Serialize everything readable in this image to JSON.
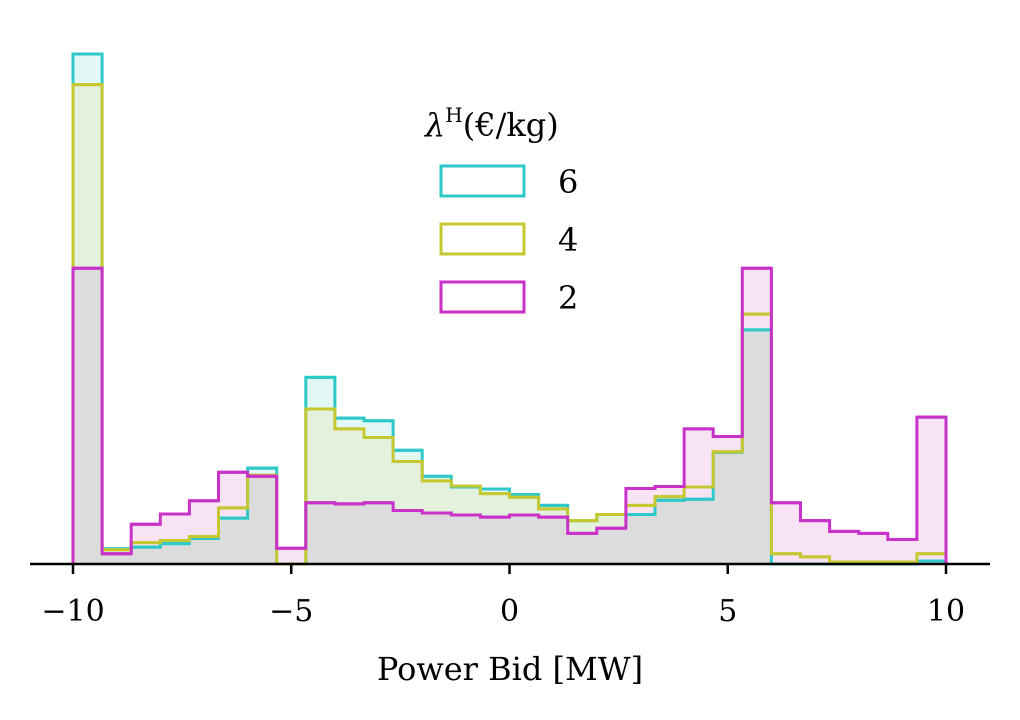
{
  "chart_data": {
    "type": "histogram",
    "xlabel": "Power Bid [MW]",
    "ylabel": "",
    "xlim": [
      -11,
      11
    ],
    "ylim": [
      0,
      1.08
    ],
    "x_ticks": [
      -10,
      -5,
      0,
      5,
      10
    ],
    "x_tick_labels": [
      "−10",
      "−5",
      "0",
      "5",
      "10"
    ],
    "y_axis_visible": false,
    "grid": false,
    "bin_edges": [
      -10,
      -9.3333,
      -8.6667,
      -8,
      -7.3333,
      -6.6667,
      -6,
      -5.3333,
      -4.6667,
      -4,
      -3.3333,
      -2.6667,
      -2,
      -1.3333,
      -0.6667,
      0,
      0.6667,
      1.3333,
      2,
      2.6667,
      3.3333,
      4,
      4.6667,
      5.3333,
      6,
      6.6667,
      7.3333,
      8,
      8.6667,
      9.3333,
      10
    ],
    "legend": {
      "title": "λH(€/kg)",
      "title_symbol": "λ",
      "title_sup": "H",
      "title_rest": "(€/kg)",
      "placement": "upper-center"
    },
    "series": [
      {
        "name": "6",
        "color": "#2ec8c8",
        "fill": "#e2f8f6",
        "values": [
          1.0,
          0.03,
          0.033,
          0.04,
          0.05,
          0.09,
          0.188,
          0.0,
          0.366,
          0.286,
          0.281,
          0.223,
          0.172,
          0.151,
          0.147,
          0.136,
          0.115,
          0.085,
          0.097,
          0.097,
          0.125,
          0.127,
          0.219,
          0.459,
          0.0,
          0.0,
          0.0,
          0.0,
          0.0,
          0.006
        ]
      },
      {
        "name": "4",
        "color": "#c6c832",
        "fill": "#e3f1dd",
        "values": [
          0.94,
          0.028,
          0.042,
          0.046,
          0.054,
          0.11,
          0.174,
          0.0,
          0.304,
          0.265,
          0.248,
          0.201,
          0.163,
          0.153,
          0.138,
          0.131,
          0.108,
          0.085,
          0.097,
          0.115,
          0.132,
          0.151,
          0.22,
          0.49,
          0.02,
          0.014,
          0.004,
          0.004,
          0.004,
          0.02
        ]
      },
      {
        "name": "2",
        "color": "#c832c8",
        "fill": "#f8e3f5",
        "values": [
          0.58,
          0.02,
          0.078,
          0.098,
          0.124,
          0.18,
          0.172,
          0.031,
          0.12,
          0.118,
          0.12,
          0.105,
          0.1,
          0.096,
          0.092,
          0.096,
          0.092,
          0.06,
          0.07,
          0.148,
          0.152,
          0.265,
          0.25,
          0.58,
          0.12,
          0.085,
          0.064,
          0.06,
          0.048,
          0.288
        ]
      }
    ],
    "overlap_fill": "#dcdcdc"
  }
}
